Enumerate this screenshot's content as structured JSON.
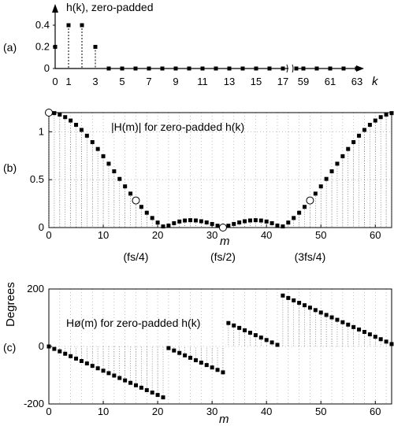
{
  "chart_data": [
    {
      "type": "scatter",
      "panel_label": "(a)",
      "title": "h(k), zero-padded",
      "xlabel": "k",
      "ylim": [
        0,
        0.5
      ],
      "yticks": [
        "0",
        "0.2",
        "0.4"
      ],
      "xticks": [
        "0",
        "1",
        "3",
        "5",
        "7",
        "9",
        "11",
        "13",
        "15",
        "17",
        "59",
        "61",
        "63"
      ],
      "axis_break_between": [
        17,
        59
      ],
      "points_k": [
        0,
        1,
        2,
        3,
        4,
        5,
        6,
        7,
        8,
        9,
        10,
        11,
        12,
        13,
        14,
        15,
        16,
        17,
        18,
        59,
        60,
        61,
        62,
        63
      ],
      "points_v": [
        0.2,
        0.4,
        0.4,
        0.2,
        0,
        0,
        0,
        0,
        0,
        0,
        0,
        0,
        0,
        0,
        0,
        0,
        0,
        0,
        0,
        0,
        0,
        0,
        0,
        0
      ],
      "grid": false
    },
    {
      "type": "scatter",
      "panel_label": "(b)",
      "title": "|H(m)| for zero-padded h(k)",
      "xlabel": "m",
      "xlim": [
        0,
        63
      ],
      "ylim": [
        0,
        1.2
      ],
      "yticks": [
        "0",
        "0.5",
        "1"
      ],
      "xticks": [
        "0",
        "10",
        "20",
        "30",
        "40",
        "50",
        "60"
      ],
      "annotations": [
        {
          "m": 16,
          "text": "(fs/4)"
        },
        {
          "m": 32,
          "text": "(fs/2)"
        },
        {
          "m": 48,
          "text": "(3fs/4)"
        }
      ],
      "open_circles_m": [
        0,
        16,
        32,
        48
      ],
      "grid": true
    },
    {
      "type": "scatter",
      "panel_label": "(c)",
      "title": "Hø(m) for zero-padded h(k)",
      "xlabel": "m",
      "ylabel": "Degrees",
      "xlim": [
        0,
        63
      ],
      "ylim": [
        -200,
        200
      ],
      "yticks": [
        "-200",
        "0",
        "200"
      ],
      "xticks": [
        "0",
        "10",
        "20",
        "30",
        "40",
        "50",
        "60"
      ],
      "grid": true
    }
  ]
}
